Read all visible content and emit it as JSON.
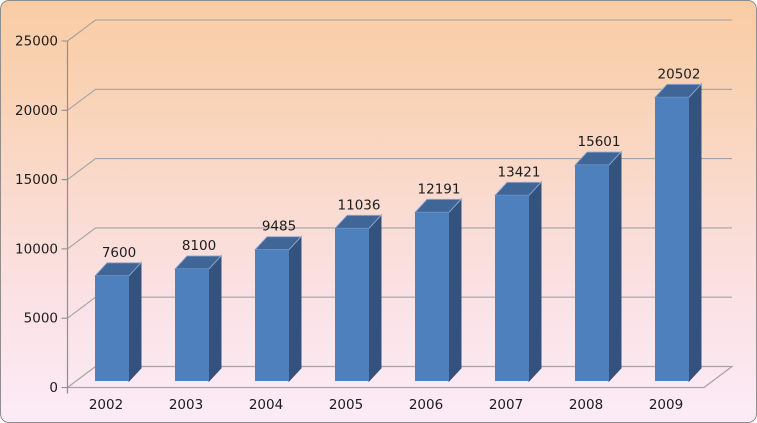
{
  "chart_data": {
    "type": "bar",
    "variant": "3d-column",
    "title": "",
    "xlabel": "",
    "ylabel": "",
    "categories": [
      "2002",
      "2003",
      "2004",
      "2005",
      "2006",
      "2007",
      "2008",
      "2009"
    ],
    "values": [
      7600,
      8100,
      9485,
      11036,
      12191,
      13421,
      15601,
      20502
    ],
    "data_labels": [
      7600,
      8100,
      9485,
      11036,
      12191,
      13421,
      15601,
      20502
    ],
    "ylim": [
      0,
      25000
    ],
    "yticks": [
      0,
      5000,
      10000,
      15000,
      20000,
      25000
    ],
    "grid": true,
    "legend": false,
    "colors": {
      "bar_front": "#4d80bc",
      "bar_side": "#33537e",
      "bar_top": "#3f6697",
      "bar_top_edge": "#92aad1",
      "gridline": "#a3a3a3",
      "axis": "#8f8f8f",
      "label_text": "#1d1d1d",
      "background_top": "#f9cca4",
      "background_bottom": "#fcebf6",
      "frame_border": "#8e8e8e"
    }
  }
}
